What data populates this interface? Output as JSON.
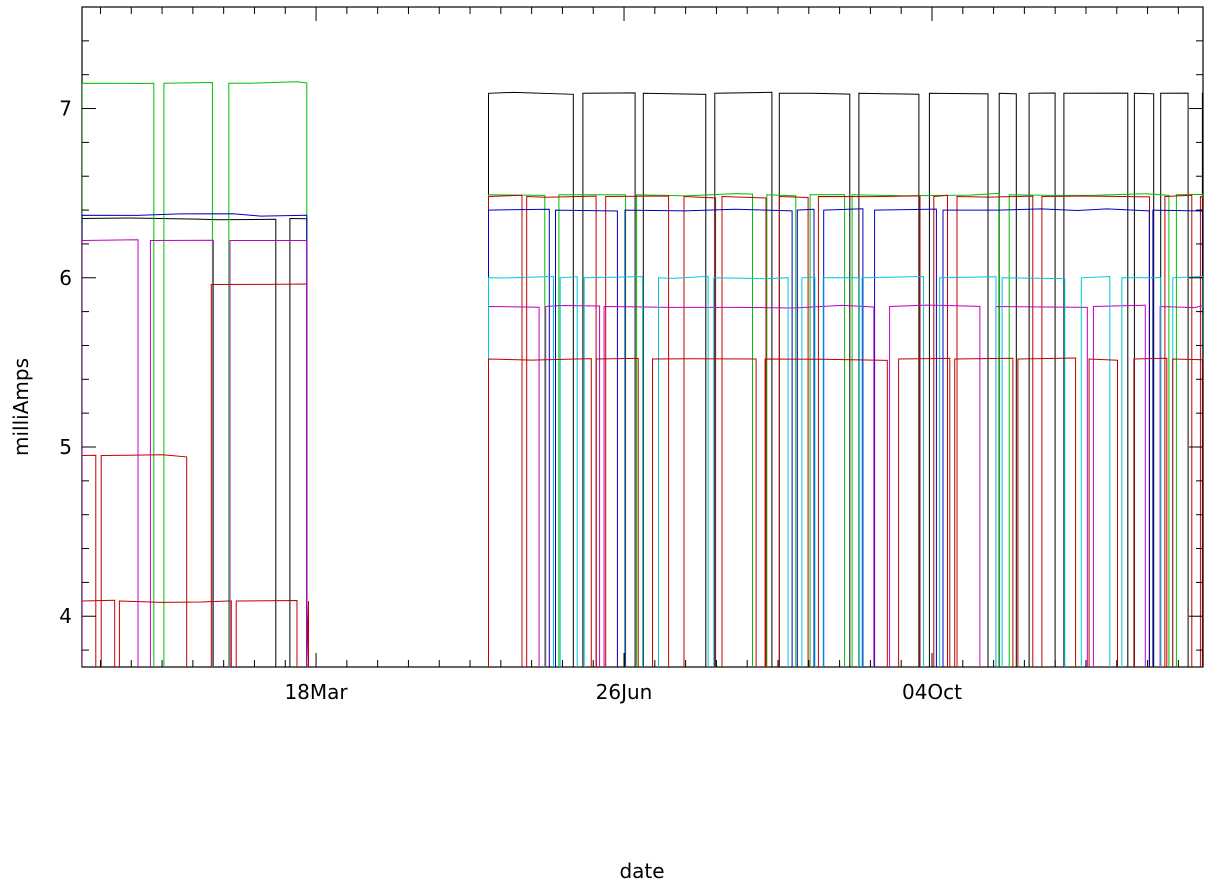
{
  "chart_data": {
    "type": "line",
    "title": "",
    "xlabel": "date",
    "ylabel": "milliAmps",
    "xlim": [
      "2015-01-01",
      "2015-12-31"
    ],
    "ylim": [
      3.7,
      7.6
    ],
    "x_tick_labels": [
      {
        "date": "2015-03-18",
        "label": "18Mar"
      },
      {
        "date": "2015-06-26",
        "label": "26Jun"
      },
      {
        "date": "2015-10-04",
        "label": "04Oct"
      }
    ],
    "y_ticks": [
      4,
      5,
      6,
      7
    ],
    "series_colors": [
      "#000000",
      "#00c000",
      "#c00000",
      "#0000c0",
      "#c000c0",
      "#00c8d8"
    ],
    "coverage_periods": [
      {
        "start": "2015-01-01",
        "end": "2015-03-15"
      },
      {
        "start": "2015-05-13",
        "end": "2015-12-31"
      }
    ],
    "series": [
      {
        "color": "#000000",
        "segments": [
          {
            "start": "2015-01-01",
            "end": "2015-03-15",
            "value": 6.35
          },
          {
            "start": "2015-05-13",
            "end": "2015-12-31",
            "value": 7.09
          }
        ]
      },
      {
        "color": "#00c000",
        "segments": [
          {
            "start": "2015-01-01",
            "end": "2015-03-15",
            "value": 7.15
          },
          {
            "start": "2015-05-13",
            "end": "2015-12-31",
            "value": 6.49
          }
        ]
      },
      {
        "color": "#c00000",
        "segments": [
          {
            "start": "2015-01-01",
            "end": "2015-03-15",
            "value": 4.09
          },
          {
            "start": "2015-05-13",
            "end": "2015-12-31",
            "value": 6.48
          }
        ]
      },
      {
        "color": "#c00000",
        "segments": [
          {
            "start": "2015-01-01",
            "end": "2015-02-04",
            "value": 4.95
          },
          {
            "start": "2015-02-12",
            "end": "2015-03-15",
            "value": 5.96
          }
        ]
      },
      {
        "color": "#0000c0",
        "segments": [
          {
            "start": "2015-01-01",
            "end": "2015-03-15",
            "value": 6.37
          },
          {
            "start": "2015-05-13",
            "end": "2015-12-31",
            "value": 6.4
          }
        ]
      },
      {
        "color": "#c000c0",
        "segments": [
          {
            "start": "2015-01-01",
            "end": "2015-03-15",
            "value": 6.22
          },
          {
            "start": "2015-05-13",
            "end": "2015-12-31",
            "value": 5.83
          }
        ]
      },
      {
        "color": "#00c8d8",
        "segments": [
          {
            "start": "2015-05-13",
            "end": "2015-12-31",
            "value": 6.0
          }
        ]
      },
      {
        "color": "#c00000",
        "segments": [
          {
            "start": "2015-05-13",
            "end": "2015-12-31",
            "value": 5.52
          }
        ]
      }
    ]
  }
}
